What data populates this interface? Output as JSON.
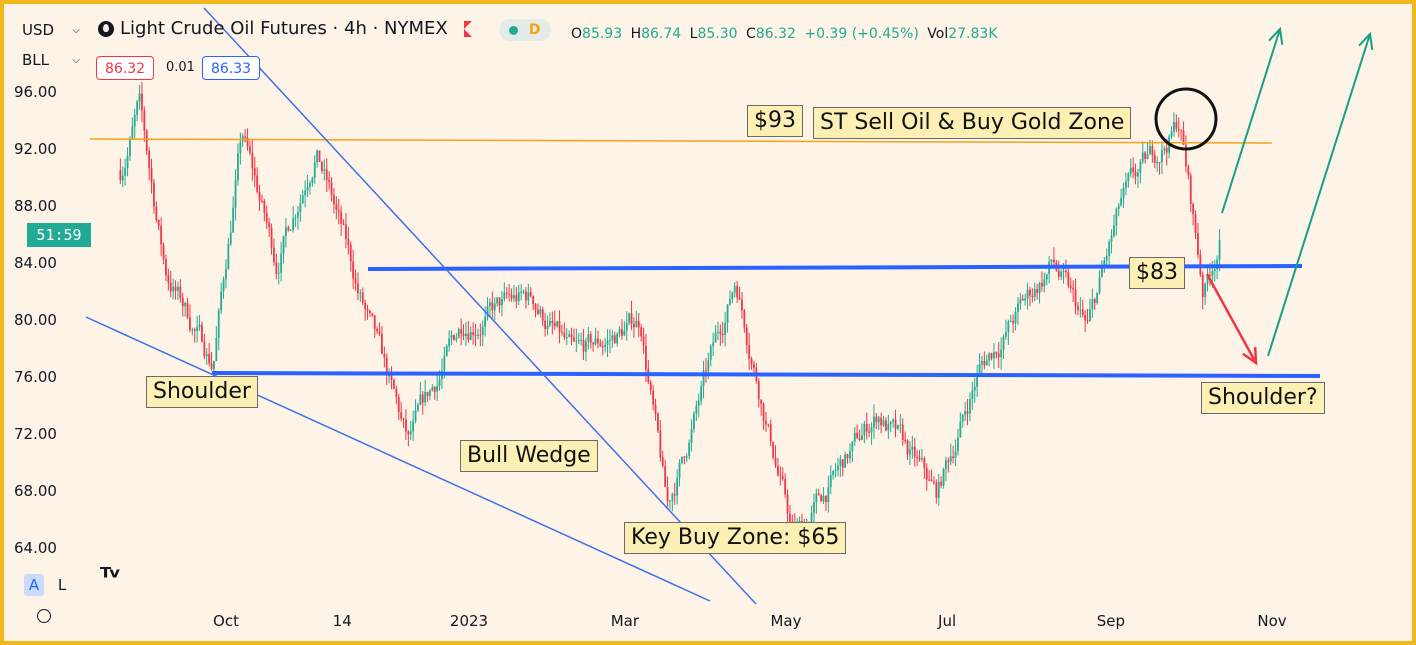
{
  "header": {
    "currency": "USD",
    "unit": "BLL",
    "title": "Light Crude Oil Futures · 4h · NYMEX",
    "flag_icon": "flag-icon",
    "sell_price": "86.32",
    "spread": "0.01",
    "buy_price": "86.33",
    "ohlc": {
      "open_label": "O",
      "open": "85.93",
      "high_label": "H",
      "high": "86.74",
      "low_label": "L",
      "low": "85.30",
      "close_label": "C",
      "close": "86.32",
      "change": "+0.39 (+0.45%)",
      "vol_label": "Vol",
      "vol": "27.83K"
    },
    "status_d": "D"
  },
  "countdown": "51:59",
  "scale_buttons": {
    "auto": "A",
    "log": "L"
  },
  "colors": {
    "up": "#22ab94",
    "down": "#f23645",
    "level_blue": "#2962ff",
    "wedge_blue": "#3d6ff0",
    "resistance_orange": "#f7a21b",
    "arrow_green": "#16a085",
    "arrow_red": "#f23645",
    "frame": "#f5b81c",
    "background": "#fdf3e6",
    "label_bg": "#fdf0b5"
  },
  "annotations": {
    "price_93": "$93",
    "sell_zone": "ST Sell Oil & Buy Gold Zone",
    "price_83": "$83",
    "shoulder_left": "Shoulder",
    "shoulder_right": "Shoulder?",
    "bull_wedge": "Bull Wedge",
    "key_buy": "Key Buy Zone: $65"
  },
  "chart_data": {
    "type": "line",
    "title": "Light Crude Oil Futures · 4h · NYMEX",
    "ylabel": "",
    "xlabel": "",
    "ylim": [
      61.5,
      99
    ],
    "x_ticks": [
      "Oct",
      "14",
      "2023",
      "Mar",
      "May",
      "Jul",
      "Sep",
      "Nov"
    ],
    "y_ticks": [
      "96.00",
      "92.00",
      "88.00",
      "84.00",
      "80.00",
      "76.00",
      "72.00",
      "68.00",
      "64.00"
    ],
    "grid": false,
    "legend": "none",
    "series": [
      {
        "values": [
          {
            "x": "2022-08-22",
            "y": 90.5
          },
          {
            "x": "2022-08-29",
            "y": 95.0
          },
          {
            "x": "2022-09-08",
            "y": 83.5
          },
          {
            "x": "2022-09-26",
            "y": 77.0
          },
          {
            "x": "2022-10-07",
            "y": 93.0
          },
          {
            "x": "2022-10-20",
            "y": 84.0
          },
          {
            "x": "2022-11-04",
            "y": 92.5
          },
          {
            "x": "2022-11-20",
            "y": 82.0
          },
          {
            "x": "2022-12-09",
            "y": 71.0
          },
          {
            "x": "2022-12-30",
            "y": 80.0
          },
          {
            "x": "2023-01-25",
            "y": 81.5
          },
          {
            "x": "2023-02-10",
            "y": 77.0
          },
          {
            "x": "2023-03-07",
            "y": 80.0
          },
          {
            "x": "2023-03-17",
            "y": 66.5
          },
          {
            "x": "2023-04-12",
            "y": 83.0
          },
          {
            "x": "2023-05-04",
            "y": 64.5
          },
          {
            "x": "2023-06-05",
            "y": 73.5
          },
          {
            "x": "2023-06-27",
            "y": 67.5
          },
          {
            "x": "2023-07-13",
            "y": 76.5
          },
          {
            "x": "2023-08-10",
            "y": 84.0
          },
          {
            "x": "2023-08-23",
            "y": 79.0
          },
          {
            "x": "2023-09-05",
            "y": 88.0
          },
          {
            "x": "2023-09-27",
            "y": 94.0
          },
          {
            "x": "2023-10-06",
            "y": 82.0
          },
          {
            "x": "2023-10-13",
            "y": 86.3
          }
        ]
      }
    ]
  }
}
